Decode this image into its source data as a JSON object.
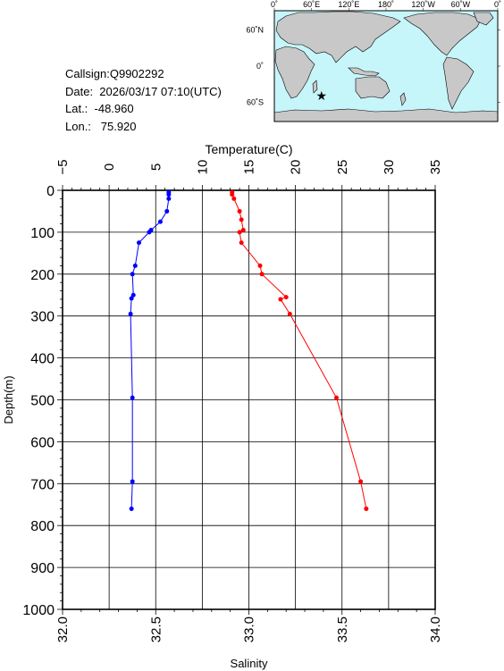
{
  "station": {
    "callsign": "Callsign:Q9902292",
    "date": "Date:  2026/03/17 07:10(UTC)",
    "lat": "Lat.:  -48.960",
    "lon": "Lon.:   75.920"
  },
  "map": {
    "top_labels": [
      "0˚",
      "60˚E",
      "120˚E",
      "180˚",
      "120˚W",
      "60˚W",
      "0˚"
    ],
    "right_labels": [
      "60˚N",
      "0˚",
      "60˚S"
    ],
    "float_marker": {
      "lon": 75.92,
      "lat": -48.96
    },
    "colors": {
      "ocean": "#c6f5fa",
      "land": "#c8c8c8",
      "marker": "#ff0000"
    }
  },
  "chart_data": {
    "type": "line",
    "ylabel": "Depth(m)",
    "ylim": [
      0,
      1000
    ],
    "y_ticks": [
      "0",
      "100",
      "200",
      "300",
      "400",
      "500",
      "600",
      "700",
      "800",
      "900",
      "1000"
    ],
    "y_reversed": true,
    "grid": true,
    "top_axis": {
      "label": "Temperature(C)",
      "range": [
        -5,
        35
      ],
      "ticks": [
        "−5",
        "0",
        "5",
        "10",
        "15",
        "20",
        "25",
        "30",
        "35"
      ]
    },
    "bottom_axis": {
      "label": "Salinity",
      "range": [
        32.0,
        34.0
      ],
      "ticks": [
        "32.0",
        "32.5",
        "33.0",
        "33.5",
        "34.0"
      ]
    },
    "series": [
      {
        "axis": "temperature",
        "color": "#0000ff",
        "points": [
          [
            6.4,
            5
          ],
          [
            6.4,
            10
          ],
          [
            6.4,
            20
          ],
          [
            6.2,
            50
          ],
          [
            5.5,
            75
          ],
          [
            4.5,
            95
          ],
          [
            4.3,
            100
          ],
          [
            3.2,
            125
          ],
          [
            2.8,
            180
          ],
          [
            2.5,
            200
          ],
          [
            2.6,
            250
          ],
          [
            2.4,
            258
          ],
          [
            2.3,
            295
          ],
          [
            2.5,
            495
          ],
          [
            2.5,
            695
          ],
          [
            2.4,
            760
          ]
        ]
      },
      {
        "axis": "salinity",
        "color": "#ff0000",
        "points": [
          [
            32.91,
            5
          ],
          [
            32.91,
            10
          ],
          [
            32.92,
            20
          ],
          [
            32.95,
            50
          ],
          [
            32.96,
            70
          ],
          [
            32.97,
            95
          ],
          [
            32.95,
            100
          ],
          [
            32.96,
            125
          ],
          [
            33.06,
            180
          ],
          [
            33.07,
            200
          ],
          [
            33.2,
            255
          ],
          [
            33.17,
            260
          ],
          [
            33.22,
            295
          ],
          [
            33.47,
            495
          ],
          [
            33.6,
            695
          ],
          [
            33.63,
            760
          ]
        ]
      }
    ]
  }
}
